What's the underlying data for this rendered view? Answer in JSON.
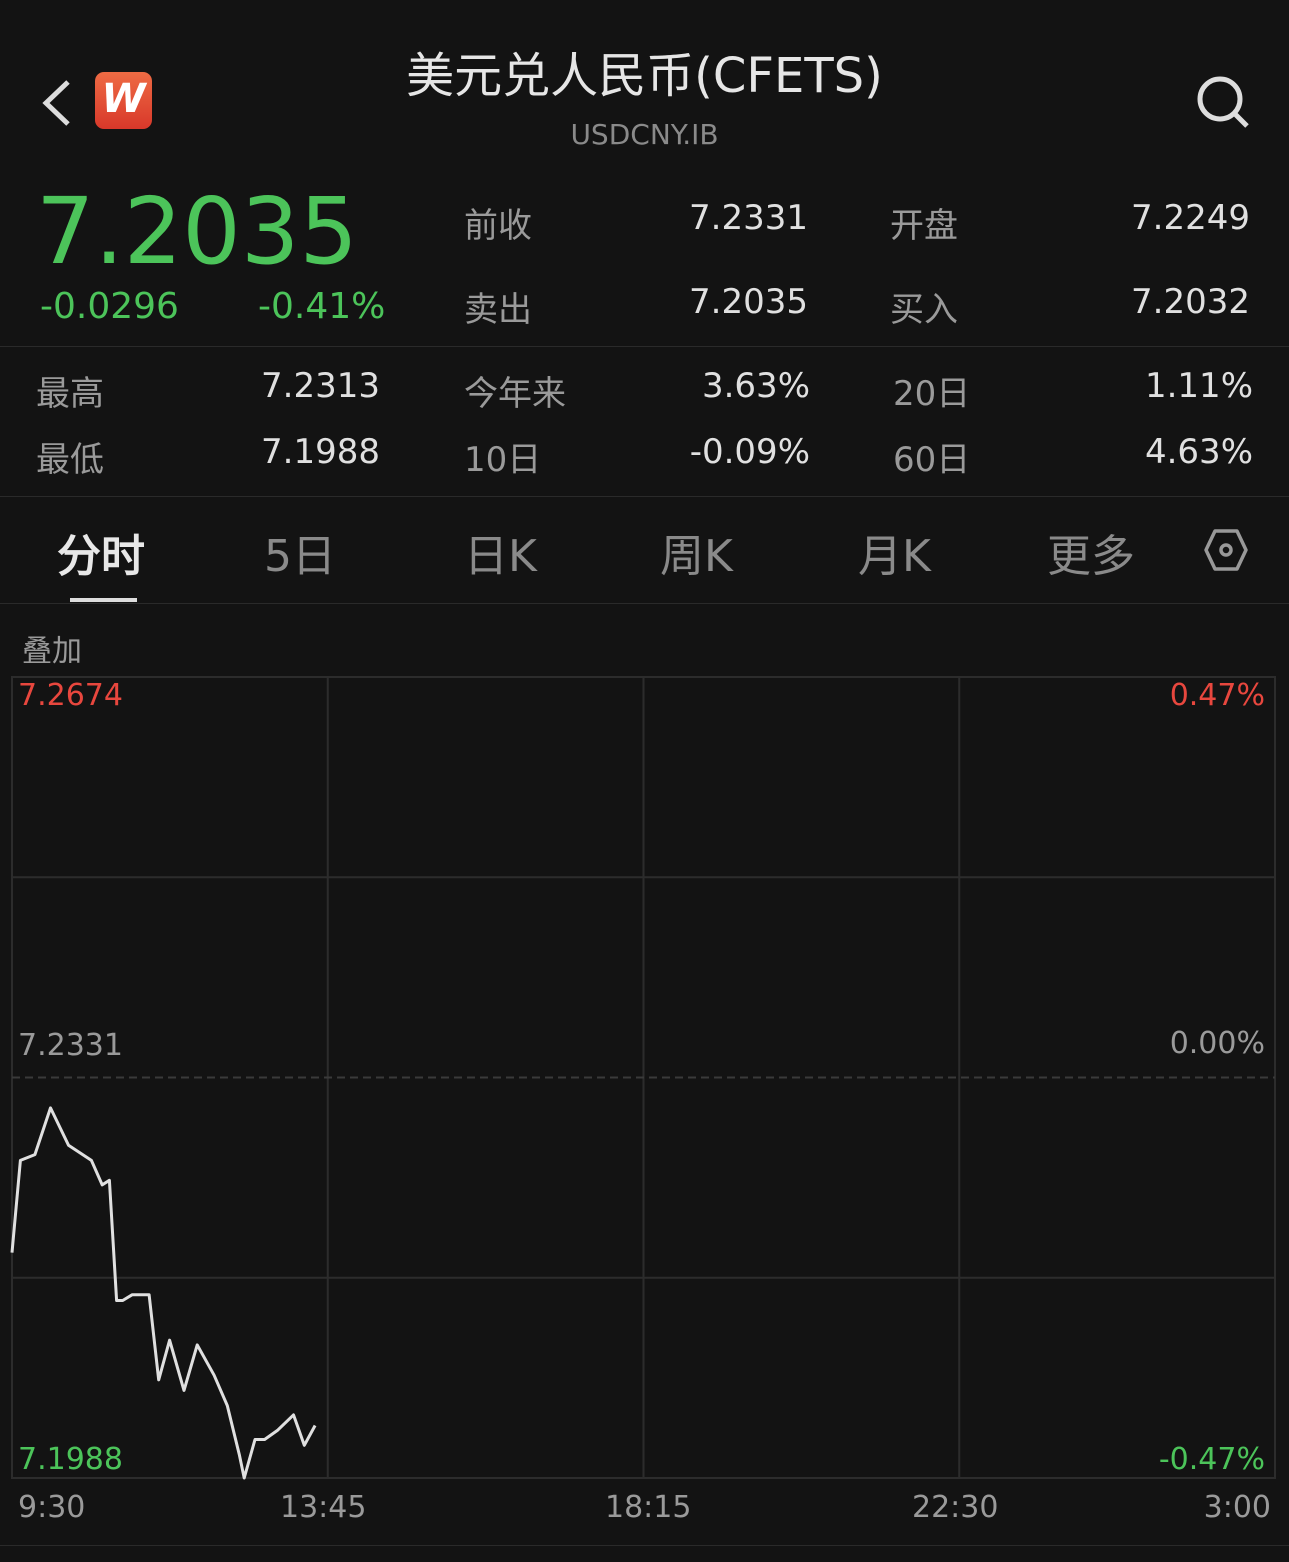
{
  "header": {
    "title": "美元兑人民币(CFETS)",
    "symbol": "USDCNY.IB",
    "logo_letter": "W"
  },
  "quote": {
    "price": "7.2035",
    "change": "-0.0296",
    "change_pct": "-0.41%"
  },
  "stats": [
    {
      "label": "前收",
      "value": "7.2331"
    },
    {
      "label": "开盘",
      "value": "7.2249"
    },
    {
      "label": "卖出",
      "value": "7.2035"
    },
    {
      "label": "买入",
      "value": "7.2032"
    },
    {
      "label": "最高",
      "value": "7.2313"
    },
    {
      "label": "今年来",
      "value": "3.63%"
    },
    {
      "label": "20日",
      "value": "1.11%"
    },
    {
      "label": "最低",
      "value": "7.1988"
    },
    {
      "label": "10日",
      "value": "-0.09%"
    },
    {
      "label": "60日",
      "value": "4.63%"
    }
  ],
  "tabs": [
    "分时",
    "5日",
    "日K",
    "周K",
    "月K",
    "更多"
  ],
  "active_tab": "分时",
  "overlay_label": "叠加",
  "colors": {
    "up": "#e8473e",
    "down": "#4cc45a",
    "line": "#e0e0e0",
    "bg": "#131313"
  },
  "chart_data": {
    "type": "line",
    "ylim": [
      7.1988,
      7.2674
    ],
    "y_labels": {
      "top": "7.2674",
      "mid": "7.2331",
      "bottom": "7.1988"
    },
    "pct_labels": {
      "top": "0.47%",
      "mid": "0.00%",
      "bottom": "-0.47%"
    },
    "x_ticks": [
      "9:30",
      "13:45",
      "18:15",
      "22:30",
      "3:00"
    ],
    "x_range": [
      "9:30",
      "3:00"
    ],
    "grid": true,
    "x": [
      "9:30",
      "9:37",
      "9:49",
      "10:02",
      "10:17",
      "10:36",
      "10:45",
      "10:51",
      "10:57",
      "11:02",
      "11:10",
      "11:24",
      "11:32",
      "11:41",
      "11:53",
      "12:04",
      "12:18",
      "12:29",
      "12:39",
      "12:43",
      "12:52",
      "13:00",
      "13:11",
      "13:24",
      "13:33",
      "13:42"
    ],
    "values": [
      7.2181,
      7.226,
      7.2265,
      7.2305,
      7.2273,
      7.226,
      7.2239,
      7.2243,
      7.214,
      7.214,
      7.2145,
      7.2145,
      7.2072,
      7.2106,
      7.2063,
      7.2102,
      7.2076,
      7.205,
      7.2008,
      7.1988,
      7.2021,
      7.2021,
      7.2029,
      7.2042,
      7.2016,
      7.2033
    ]
  }
}
